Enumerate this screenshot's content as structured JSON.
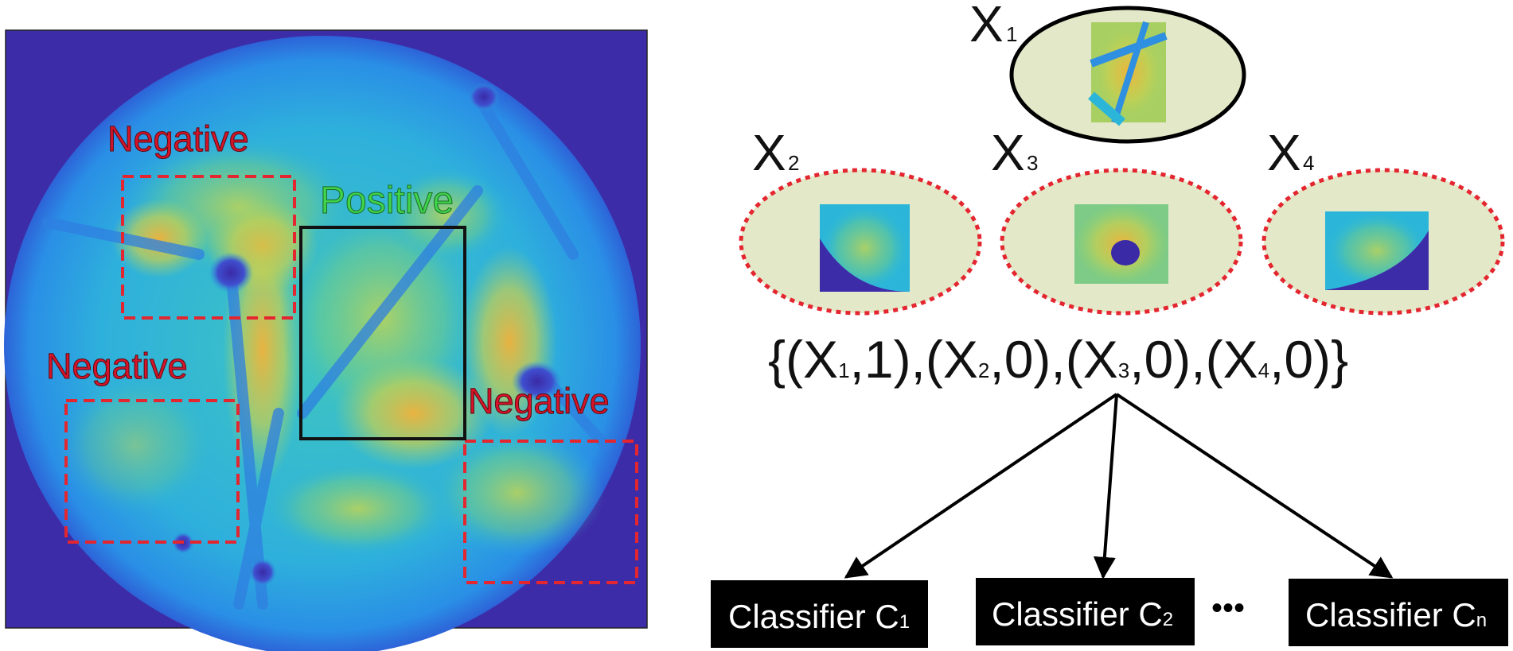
{
  "left_panel": {
    "heatmap_colors": {
      "background": "#3d2ca8",
      "low": "#2f6be0",
      "mid": "#2bb6d9",
      "high": "#9fd46a",
      "peak": "#f2b23a"
    },
    "labels": {
      "positive": "Positive",
      "negative_top": "Negative",
      "negative_left": "Negative",
      "negative_right": "Negative"
    },
    "colors": {
      "negative_text": "#d6142a",
      "positive_text": "#3fd44c",
      "negative_box": "#e3262f",
      "positive_box": "#111111"
    }
  },
  "right_panel": {
    "bags": [
      {
        "name": "X",
        "sub": "1",
        "kind": "positive"
      },
      {
        "name": "X",
        "sub": "2",
        "kind": "negative"
      },
      {
        "name": "X",
        "sub": "3",
        "kind": "negative"
      },
      {
        "name": "X",
        "sub": "4",
        "kind": "negative"
      }
    ],
    "bag_fill": "#e3e8c8",
    "set_expression": {
      "open": "{(",
      "t1": "X",
      "s1": "1",
      "a1": ",1),(",
      "t2": "X",
      "s2": "2",
      "a2": ",0),(",
      "t3": "X",
      "s3": "3",
      "a3": ",0),(",
      "t4": "X",
      "s4": "4",
      "a4": ",0)}"
    },
    "classifiers": [
      {
        "label": "Classifier C",
        "sub": "1"
      },
      {
        "label": "Classifier C",
        "sub": "2"
      },
      {
        "label": "Classifier C",
        "sub": "n"
      }
    ],
    "ellipsis": "•••"
  }
}
